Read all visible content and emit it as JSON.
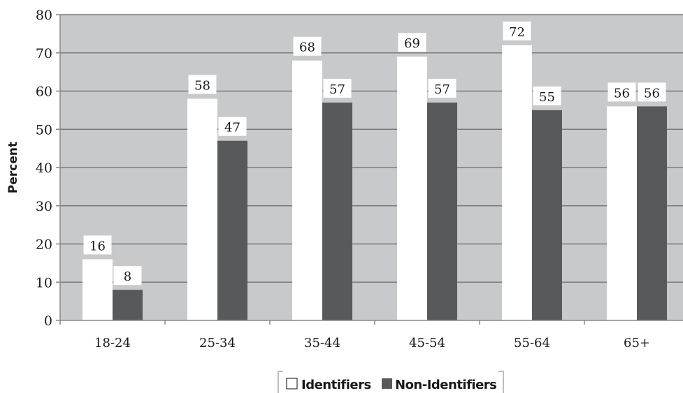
{
  "chart_data": {
    "type": "bar",
    "categories": [
      "18-24",
      "25-34",
      "35-44",
      "45-54",
      "55-64",
      "65+"
    ],
    "series": [
      {
        "name": "Identifiers",
        "values": [
          16,
          58,
          68,
          69,
          72,
          56
        ],
        "color": "#ffffff"
      },
      {
        "name": "Non-Identifiers",
        "values": [
          8,
          47,
          57,
          57,
          55,
          56
        ],
        "color": "#58595b"
      }
    ],
    "ylabel": "Percent",
    "ylim": [
      0,
      80
    ],
    "yticks": [
      0,
      10,
      20,
      30,
      40,
      50,
      60,
      70,
      80
    ],
    "grid": true,
    "legend": "bottom-center",
    "colors": {
      "plot_background": "#c8c9cb",
      "gridline": "#7a7a7a",
      "axis": "#888888",
      "label_background": "#ffffff"
    }
  }
}
